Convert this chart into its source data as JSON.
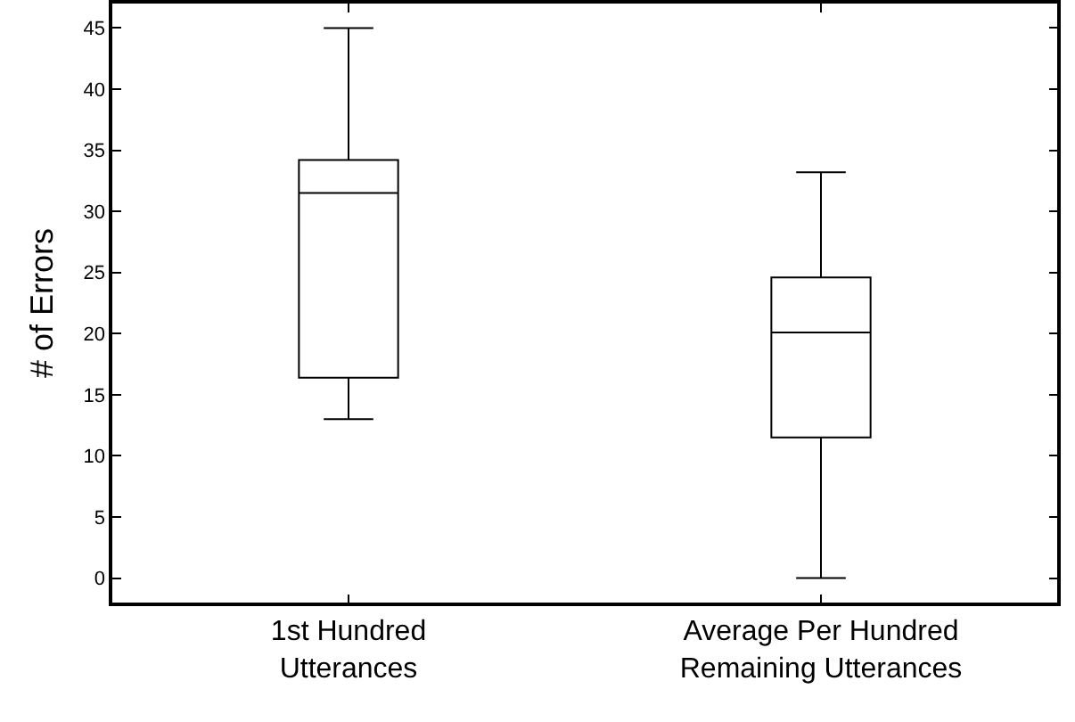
{
  "chart_data": {
    "type": "box",
    "ylabel": "# of Errors",
    "categories": [
      "1st Hundred Utterances",
      "Average Per Hundred Remaining Utterances"
    ],
    "boxes": [
      {
        "low": 13,
        "q1": 16.4,
        "median": 31.5,
        "q3": 34.2,
        "high": 45
      },
      {
        "low": 0,
        "q1": 11.5,
        "median": 20.1,
        "q3": 24.6,
        "high": 33.2
      }
    ],
    "color": "#000000",
    "ylim": [
      -2,
      47
    ],
    "yticks": [
      0,
      5,
      10,
      15,
      20,
      25,
      30,
      35,
      40,
      45
    ]
  }
}
